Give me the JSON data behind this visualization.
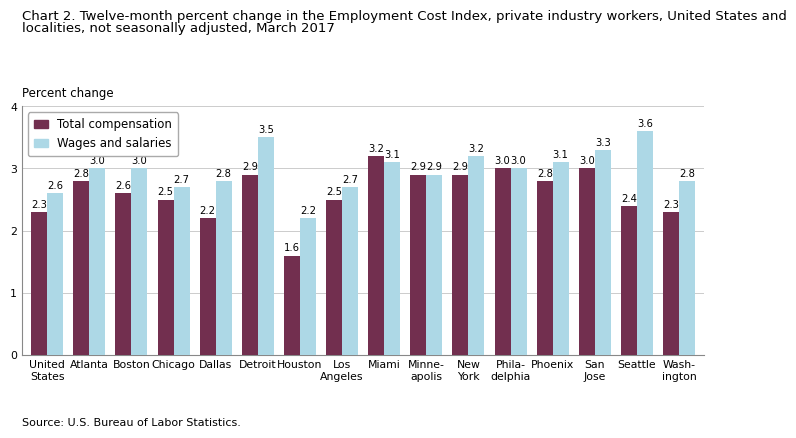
{
  "title_line1": "Chart 2. Twelve-month percent change in the Employment Cost Index, private industry workers, United States and",
  "title_line2": "localities, not seasonally adjusted, March 2017",
  "ylabel": "Percent change",
  "source": "Source: U.S. Bureau of Labor Statistics.",
  "categories": [
    "United\nStates",
    "Atlanta",
    "Boston",
    "Chicago",
    "Dallas",
    "Detroit",
    "Houston",
    "Los\nAngeles",
    "Miami",
    "Minne-\napolis",
    "New\nYork",
    "Phila-\ndelphia",
    "Phoenix",
    "San\nJose",
    "Seattle",
    "Wash-\nington"
  ],
  "total_compensation": [
    2.3,
    2.8,
    2.6,
    2.5,
    2.2,
    2.9,
    1.6,
    2.5,
    3.2,
    2.9,
    2.9,
    3.0,
    2.8,
    3.0,
    2.4,
    2.3
  ],
  "wages_and_salaries": [
    2.6,
    3.0,
    3.0,
    2.7,
    2.8,
    3.5,
    2.2,
    2.7,
    3.1,
    2.9,
    3.2,
    3.0,
    3.1,
    3.3,
    3.6,
    2.8
  ],
  "color_total": "#722F4F",
  "color_wages": "#ADD8E6",
  "ylim": [
    0,
    4.0
  ],
  "yticks": [
    0.0,
    1.0,
    2.0,
    3.0,
    4.0
  ],
  "bar_width": 0.38,
  "label_total": "Total compensation",
  "label_wages": "Wages and salaries",
  "title_fontsize": 9.5,
  "ylabel_fontsize": 8.5,
  "tick_fontsize": 7.8,
  "value_fontsize": 7.2,
  "legend_fontsize": 8.5,
  "source_fontsize": 8.0
}
